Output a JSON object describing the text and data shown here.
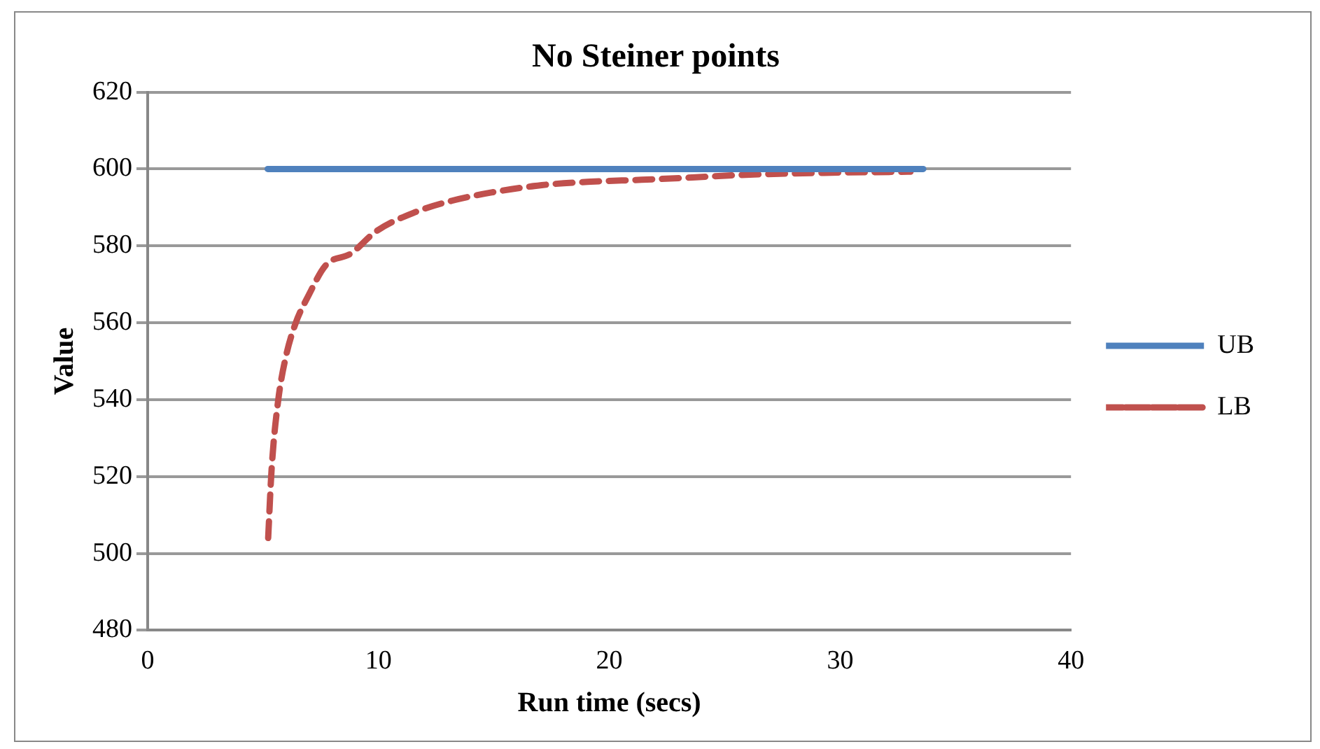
{
  "chart_data": {
    "type": "line",
    "title": "No Steiner points",
    "xlabel": "Run time (secs)",
    "ylabel": "Value",
    "xlim": [
      0,
      40
    ],
    "xticks": [
      0,
      10,
      20,
      30,
      40
    ],
    "ylim": [
      480,
      620
    ],
    "yticks": [
      480,
      500,
      520,
      540,
      560,
      580,
      600,
      620
    ],
    "grid": "y",
    "legend": "right",
    "marker": "none",
    "series": [
      {
        "name": "UB",
        "color": "#4f81bd",
        "line_style": "solid",
        "x": [
          5.2,
          33.6
        ],
        "values": [
          600,
          600
        ]
      },
      {
        "name": "LB",
        "color": "#c0504d",
        "line_style": "dashed",
        "x": [
          5.22,
          5.37,
          5.65,
          5.98,
          6.41,
          6.96,
          7.72,
          8.8,
          9.9,
          11.6,
          13.15,
          14.9,
          17.07,
          19.2,
          21.4,
          23.6,
          25.5,
          29.3,
          33.05
        ],
        "values": [
          504,
          522,
          539.6,
          551,
          559.9,
          567,
          575,
          578,
          583.8,
          588.8,
          591.7,
          593.9,
          595.8,
          596.7,
          597.2,
          597.8,
          598.4,
          599,
          599.3
        ]
      }
    ]
  }
}
